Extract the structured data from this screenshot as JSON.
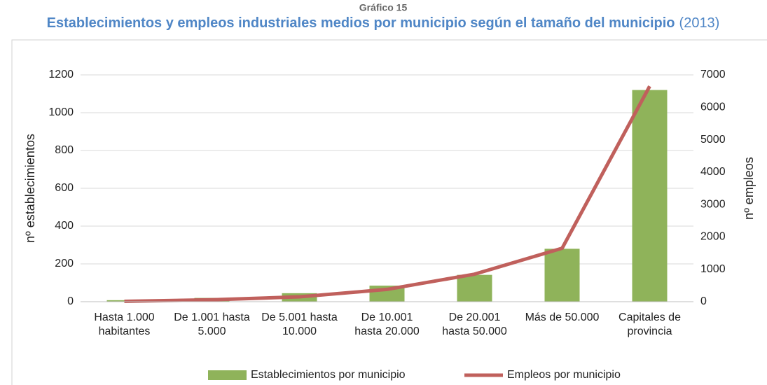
{
  "chart_data": {
    "type": "bar_line",
    "supertitle": "Gráfico 15",
    "title": "Establecimientos y empleos industriales medios por municipio según el tamaño del municipio",
    "title_note": "(2013)",
    "categories": [
      "Hasta 1.000\nhabitantes",
      "De 1.001 hasta\n5.000",
      "De 5.001 hasta\n10.000",
      "De 10.001\nhasta 20.000",
      "De 20.001\nhasta 50.000",
      "Más de 50.000",
      "Capitales de\nprovincia"
    ],
    "series": [
      {
        "name": "Establecimientos por municipio",
        "type": "bar",
        "color": "#8fb35a",
        "values": [
          8,
          20,
          45,
          85,
          142,
          280,
          1120
        ]
      },
      {
        "name": "Empleos por municipio",
        "type": "line",
        "axis": "y2",
        "color": "#c0605c",
        "values": [
          10,
          60,
          150,
          380,
          850,
          1650,
          6650
        ]
      }
    ],
    "ylabel": "nº establecimientos",
    "y2label": "nº empleos",
    "ylim": [
      0,
      1200
    ],
    "yticks": [
      0,
      200,
      400,
      600,
      800,
      1000,
      1200
    ],
    "y2lim": [
      0,
      7000
    ],
    "y2ticks": [
      0,
      1000,
      2000,
      3000,
      4000,
      5000,
      6000,
      7000
    ],
    "grid": true,
    "legend": "bottom"
  }
}
